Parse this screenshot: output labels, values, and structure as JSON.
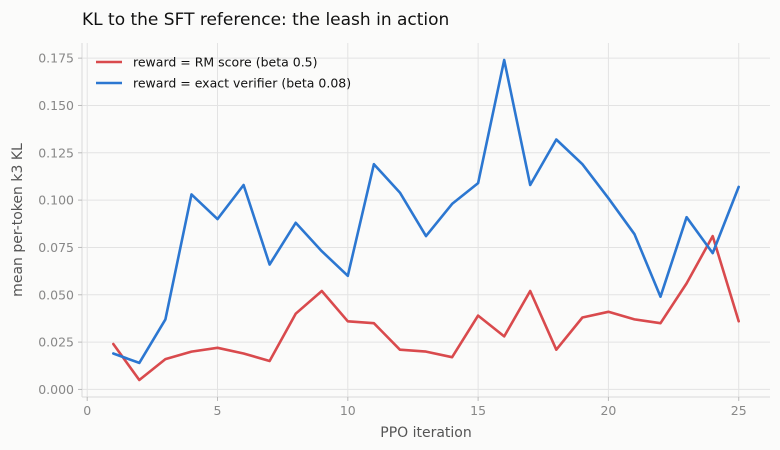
{
  "chart_data": {
    "type": "line",
    "title": "KL to the SFT reference: the leash in action",
    "xlabel": "PPO iteration",
    "ylabel": "mean per-token k3 KL",
    "xlim": [
      -0.2,
      26.2
    ],
    "ylim": [
      -0.004,
      0.183
    ],
    "x_ticks": [
      0,
      5,
      10,
      15,
      20,
      25
    ],
    "y_ticks": [
      0.0,
      0.025,
      0.05,
      0.075,
      0.1,
      0.125,
      0.15,
      0.175
    ],
    "y_tick_labels": [
      "0.000",
      "0.025",
      "0.050",
      "0.075",
      "0.100",
      "0.125",
      "0.150",
      "0.175"
    ],
    "grid": true,
    "legend_position": "top-left",
    "x": [
      1,
      2,
      3,
      4,
      5,
      6,
      7,
      8,
      9,
      10,
      11,
      12,
      13,
      14,
      15,
      16,
      17,
      18,
      19,
      20,
      21,
      22,
      23,
      24,
      25
    ],
    "series": [
      {
        "name": "reward = RM score (beta 0.5)",
        "color": "#d94a4d",
        "values": [
          0.024,
          0.005,
          0.016,
          0.02,
          0.022,
          0.019,
          0.015,
          0.04,
          0.052,
          0.036,
          0.035,
          0.021,
          0.02,
          0.017,
          0.039,
          0.028,
          0.052,
          0.021,
          0.038,
          0.041,
          0.037,
          0.035,
          0.056,
          0.081,
          0.036
        ]
      },
      {
        "name": "reward = exact verifier (beta 0.08)",
        "color": "#2c77d1",
        "values": [
          0.019,
          0.014,
          0.037,
          0.103,
          0.09,
          0.108,
          0.066,
          0.088,
          0.073,
          0.06,
          0.119,
          0.104,
          0.081,
          0.098,
          0.109,
          0.174,
          0.108,
          0.132,
          0.119,
          0.101,
          0.082,
          0.049,
          0.091,
          0.072,
          0.107
        ]
      }
    ]
  }
}
